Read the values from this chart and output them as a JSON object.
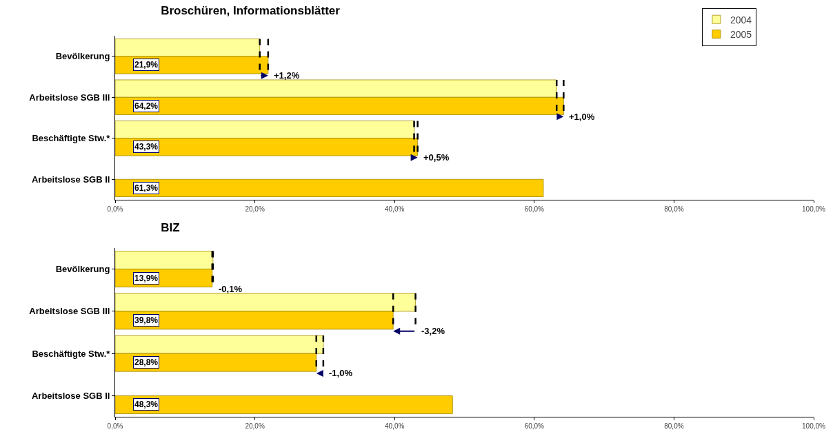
{
  "chart_data": [
    {
      "type": "bar",
      "orientation": "horizontal",
      "title": "Broschüren, Informationsblätter",
      "categories": [
        "Bevölkerung",
        "Arbeitslose SGB III",
        "Beschäftigte Stw.*",
        "Arbeitslose SGB II"
      ],
      "series": [
        {
          "name": "2004",
          "color": "#ffff99",
          "values": [
            20.7,
            63.2,
            42.8,
            null
          ]
        },
        {
          "name": "2005",
          "color": "#ffcc00",
          "values": [
            21.9,
            64.2,
            43.3,
            61.3
          ],
          "value_labels": [
            "21,9%",
            "64,2%",
            "43,3%",
            "61,3%"
          ]
        }
      ],
      "xlim": [
        0,
        100
      ],
      "xticks": [
        {
          "value": 0,
          "label": "0,0%"
        },
        {
          "value": 20,
          "label": "20,0%"
        },
        {
          "value": 40,
          "label": "40,0%"
        },
        {
          "value": 60,
          "label": "60,0%"
        },
        {
          "value": 80,
          "label": "80,0%"
        },
        {
          "value": 100,
          "label": "100,0%"
        }
      ],
      "annotations": [
        {
          "text": "+1,2%",
          "x": 21.9,
          "y": "Bevölkerung"
        },
        {
          "text": "+1,0%",
          "x": 64.2,
          "y": "Arbeitslose SGB III"
        },
        {
          "text": "+0,5%",
          "x": 43.3,
          "y": "Beschäftigte Stw.*"
        }
      ],
      "grid": false,
      "legend": "top right"
    },
    {
      "type": "bar",
      "orientation": "horizontal",
      "title": "BIZ",
      "categories": [
        "Bevölkerung",
        "Arbeitslose SGB III",
        "Beschäftigte Stw.*",
        "Arbeitslose SGB II"
      ],
      "series": [
        {
          "name": "2004",
          "color": "#ffff99",
          "values": [
            14.0,
            43.0,
            29.8,
            null
          ]
        },
        {
          "name": "2005",
          "color": "#ffcc00",
          "values": [
            13.9,
            39.8,
            28.8,
            48.3
          ],
          "value_labels": [
            "13,9%",
            "39,8%",
            "28,8%",
            "48,3%"
          ]
        }
      ],
      "xlim": [
        0,
        100
      ],
      "xticks": [
        {
          "value": 0,
          "label": "0,0%"
        },
        {
          "value": 20,
          "label": "20,0%"
        },
        {
          "value": 40,
          "label": "40,0%"
        },
        {
          "value": 60,
          "label": "60,0%"
        },
        {
          "value": 80,
          "label": "80,0%"
        },
        {
          "value": 100,
          "label": "100,0%"
        }
      ],
      "annotations": [
        {
          "text": "-0,1%",
          "x": 14.0,
          "y": "Bevölkerung"
        },
        {
          "text": "-3,2%",
          "x": 43.0,
          "y": "Arbeitslose SGB III"
        },
        {
          "text": "-1,0%",
          "x": 29.8,
          "y": "Beschäftigte Stw.*"
        }
      ],
      "grid": false,
      "legend": false
    }
  ]
}
